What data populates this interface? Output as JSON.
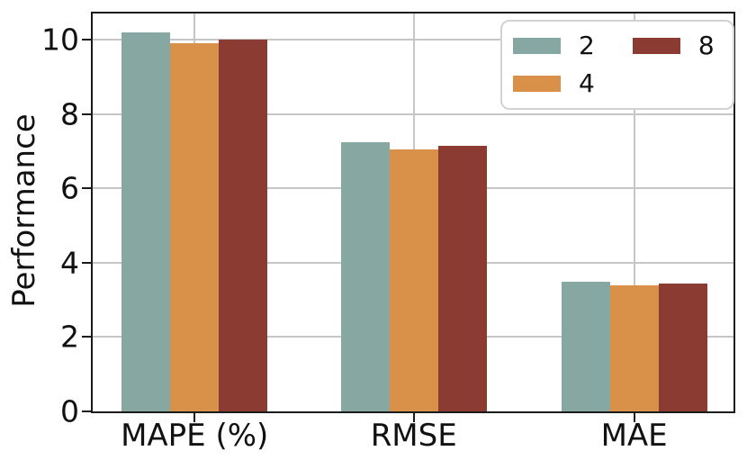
{
  "chart_data": {
    "type": "bar",
    "title": "",
    "xlabel": "",
    "ylabel": "Performance",
    "categories": [
      "MAPE (%)",
      "RMSE",
      "MAE"
    ],
    "series": [
      {
        "name": "2",
        "color": "#87a7a3",
        "values": [
          10.2,
          7.25,
          3.48
        ]
      },
      {
        "name": "4",
        "color": "#d9914a",
        "values": [
          9.9,
          7.05,
          3.38
        ]
      },
      {
        "name": "8",
        "color": "#8c3b32",
        "values": [
          10.0,
          7.15,
          3.43
        ]
      }
    ],
    "yticks": [
      0,
      2,
      4,
      6,
      8,
      10
    ],
    "ylim": [
      0,
      10.7
    ],
    "grid": true,
    "legend_position": "upper right",
    "legend_columns": 2
  },
  "colors": {
    "spine": "#1b1b1b",
    "gridline": "#c6c6c6",
    "legend_border": "#d2d2d2",
    "background": "#ffffff"
  }
}
